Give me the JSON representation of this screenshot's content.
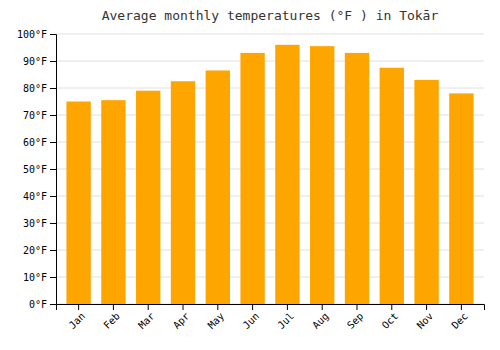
{
  "chart_data": {
    "type": "bar",
    "title": "Average monthly temperatures (°F ) in Tokār",
    "categories": [
      "Jan",
      "Feb",
      "Mar",
      "Apr",
      "May",
      "Jun",
      "Jul",
      "Aug",
      "Sep",
      "Oct",
      "Nov",
      "Dec"
    ],
    "values": [
      75,
      75.5,
      79,
      82.5,
      86.5,
      93,
      96,
      95.5,
      93,
      87.5,
      83,
      78
    ],
    "color": "#FFA500",
    "ylim": [
      0,
      100
    ],
    "yticks": [
      {
        "value": 0,
        "label": "0°F"
      },
      {
        "value": 10,
        "label": "10°F"
      },
      {
        "value": 20,
        "label": "20°F"
      },
      {
        "value": 30,
        "label": "30°F"
      },
      {
        "value": 40,
        "label": "40°F"
      },
      {
        "value": 50,
        "label": "50°F"
      },
      {
        "value": 60,
        "label": "60°F"
      },
      {
        "value": 70,
        "label": "70°F"
      },
      {
        "value": 80,
        "label": "80°F"
      },
      {
        "value": 90,
        "label": "90°F"
      },
      {
        "value": 100,
        "label": "100°F"
      }
    ],
    "grid": true
  }
}
